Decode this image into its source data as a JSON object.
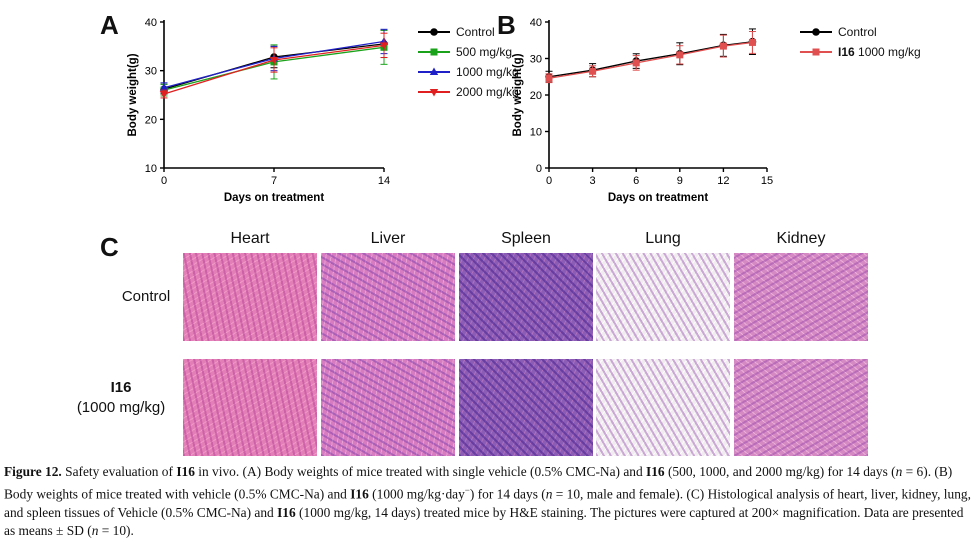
{
  "panels": {
    "a_letter": "A",
    "b_letter": "B",
    "c_letter": "C"
  },
  "chart_data": [
    {
      "type": "line",
      "xlabel": "Days on treatment",
      "ylabel": "Body weight(g)",
      "x": [
        0,
        7,
        14
      ],
      "xticks": [
        "0",
        "7",
        "14"
      ],
      "yticks": [
        "10",
        "20",
        "30",
        "40"
      ],
      "ylim": [
        10,
        40
      ],
      "legend": "right",
      "series": [
        {
          "name": "Control",
          "color": "#000000",
          "marker": "circle",
          "values": [
            26.2,
            32.8,
            35.5
          ],
          "sd": [
            1.0,
            2.2,
            2.8
          ]
        },
        {
          "name": "500 mg/kg",
          "color": "#1aa31a",
          "marker": "square",
          "values": [
            26.0,
            31.8,
            34.8
          ],
          "sd": [
            1.2,
            3.5,
            3.5
          ]
        },
        {
          "name": "1000 mg/kg",
          "color": "#2020c8",
          "marker": "triangle-up",
          "values": [
            26.5,
            32.5,
            36.0
          ],
          "sd": [
            1.0,
            2.5,
            2.5
          ]
        },
        {
          "name": "2000 mg/kg",
          "color": "#e02020",
          "marker": "triangle-down",
          "values": [
            25.2,
            32.2,
            35.2
          ],
          "sd": [
            0.8,
            2.5,
            2.5
          ]
        }
      ]
    },
    {
      "type": "line",
      "xlabel": "Days on treatment",
      "ylabel": "Body weight(g)",
      "x": [
        0,
        3,
        6,
        9,
        12,
        14
      ],
      "xticks": [
        "0",
        "3",
        "6",
        "9",
        "12",
        "15"
      ],
      "yticks": [
        "0",
        "10",
        "20",
        "30",
        "40"
      ],
      "ylim": [
        0,
        40
      ],
      "legend": "right",
      "series": [
        {
          "name": "Control",
          "color": "#000000",
          "marker": "circle",
          "values": [
            25.0,
            26.8,
            29.3,
            31.3,
            33.6,
            34.6
          ],
          "sd": [
            1.5,
            1.8,
            2.0,
            3.0,
            3.0,
            3.5
          ]
        },
        {
          "name": "I16 1000 mg/kg",
          "name_bold": "I16",
          "name_rest": " 1000 mg/kg",
          "color": "#e05050",
          "marker": "square",
          "values": [
            24.6,
            26.5,
            28.8,
            31.0,
            33.4,
            34.4
          ],
          "sd": [
            1.2,
            1.5,
            2.0,
            2.5,
            3.0,
            3.0
          ]
        }
      ]
    }
  ],
  "histology": {
    "columns": [
      "Heart",
      "Liver",
      "Spleen",
      "Lung",
      "Kidney"
    ],
    "rows": [
      {
        "label": "Control",
        "sublabel": ""
      },
      {
        "label": "I16",
        "sublabel": "(1000 mg/kg)"
      }
    ]
  },
  "caption": {
    "figure_label": "Figure 12.",
    "t1": " Safety evaluation of ",
    "c1": "I16",
    "t2": " in vivo. (A) Body weights of mice treated with single vehicle (0.5% CMC-Na) and ",
    "c2": "I16",
    "t3": " (500, 1000, and 2000 mg/kg) for 14 days (",
    "n1": "n",
    "t4": " = 6). (B) Body weights of mice treated with vehicle (0.5% CMC-Na) and ",
    "c3": "I16",
    "t5": " (1000 mg/kg·day",
    "sup": "−",
    "t6": ") for 14 days (",
    "n2": "n",
    "t7": " = 10, male and female). (C) Histological analysis of heart, liver, kidney, lung, and spleen tissues of Vehicle (0.5% CMC-Na) and ",
    "c4": "I16",
    "t8": " (1000 mg/kg, 14 days) treated mice by H&E staining. The pictures were captured at 200× magnification. Data are presented as means ± SD (",
    "n3": "n",
    "t9": " = 10)."
  }
}
